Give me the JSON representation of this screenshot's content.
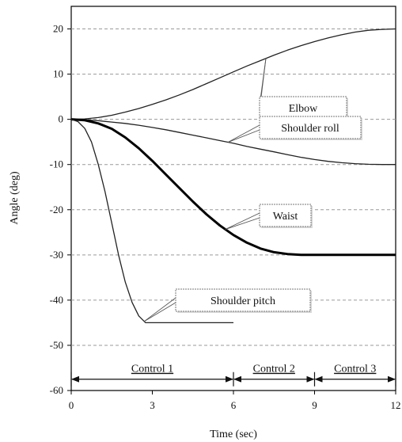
{
  "chart_data": {
    "type": "line",
    "title": "",
    "xlabel": "Time (sec)",
    "ylabel": "Angle (deg)",
    "xlim": [
      0,
      12
    ],
    "ylim": [
      -60,
      25
    ],
    "xticks": [
      0,
      3,
      6,
      9,
      12
    ],
    "yticks": [
      20,
      10,
      0,
      -10,
      -20,
      -30,
      -40,
      -50,
      -60
    ],
    "grid": "horizontal-dashed",
    "series": [
      {
        "name": "Elbow",
        "color": "#222222",
        "x": [
          0,
          0.5,
          1,
          1.5,
          2,
          2.5,
          3,
          3.5,
          4,
          4.5,
          5,
          5.5,
          6,
          6.5,
          7,
          7.5,
          8,
          8.5,
          9,
          9.5,
          10,
          10.5,
          11,
          11.5,
          12
        ],
        "y": [
          0,
          0.1,
          0.4,
          0.9,
          1.6,
          2.4,
          3.3,
          4.3,
          5.4,
          6.6,
          7.9,
          9.2,
          10.5,
          11.8,
          13.0,
          14.2,
          15.3,
          16.3,
          17.2,
          18.0,
          18.7,
          19.3,
          19.7,
          19.9,
          20
        ]
      },
      {
        "name": "Shoulder roll",
        "color": "#222222",
        "x": [
          0,
          0.5,
          1,
          1.5,
          2,
          2.5,
          3,
          3.5,
          4,
          4.5,
          5,
          5.5,
          6,
          6.5,
          7,
          7.5,
          8,
          8.5,
          9,
          9.5,
          10,
          10.5,
          11,
          11.5,
          12
        ],
        "y": [
          0,
          -0.1,
          -0.3,
          -0.6,
          -0.9,
          -1.3,
          -1.8,
          -2.3,
          -2.9,
          -3.5,
          -4.1,
          -4.7,
          -5.3,
          -6.0,
          -6.6,
          -7.2,
          -7.8,
          -8.4,
          -8.9,
          -9.3,
          -9.6,
          -9.8,
          -9.95,
          -10,
          -10
        ]
      },
      {
        "name": "Waist",
        "color": "#000000",
        "x": [
          0,
          0.5,
          1,
          1.5,
          2,
          2.5,
          3,
          3.5,
          4,
          4.5,
          5,
          5.5,
          6,
          6.5,
          7,
          7.5,
          8,
          8.5,
          9,
          10,
          11,
          12
        ],
        "y": [
          0,
          -0.2,
          -0.9,
          -2.1,
          -4.0,
          -6.4,
          -9.2,
          -12.2,
          -15.2,
          -18.2,
          -21.0,
          -23.5,
          -25.6,
          -27.3,
          -28.6,
          -29.4,
          -29.8,
          -30,
          -30,
          -30,
          -30,
          -30
        ]
      },
      {
        "name": "Shoulder pitch",
        "color": "#222222",
        "x": [
          0,
          0.25,
          0.5,
          0.75,
          1,
          1.25,
          1.5,
          1.75,
          2,
          2.25,
          2.5,
          2.75,
          3,
          4,
          5,
          6
        ],
        "y": [
          0,
          -0.5,
          -2,
          -5,
          -10,
          -16,
          -23,
          -30,
          -36,
          -40.5,
          -43.5,
          -45,
          -45,
          -45,
          -45,
          -45
        ]
      }
    ],
    "annotations": [
      {
        "text": "Elbow",
        "target": "Elbow"
      },
      {
        "text": "Shoulder roll",
        "target": "Shoulder roll"
      },
      {
        "text": "Waist",
        "target": "Waist"
      },
      {
        "text": "Shoulder pitch",
        "target": "Shoulder pitch"
      }
    ],
    "phases": [
      {
        "label": "Control 1",
        "x_start": 0,
        "x_end": 6
      },
      {
        "label": "Control 2",
        "x_start": 6,
        "x_end": 9
      },
      {
        "label": "Control 3",
        "x_start": 9,
        "x_end": 12
      }
    ],
    "phase_arrow_y": -57.5
  }
}
